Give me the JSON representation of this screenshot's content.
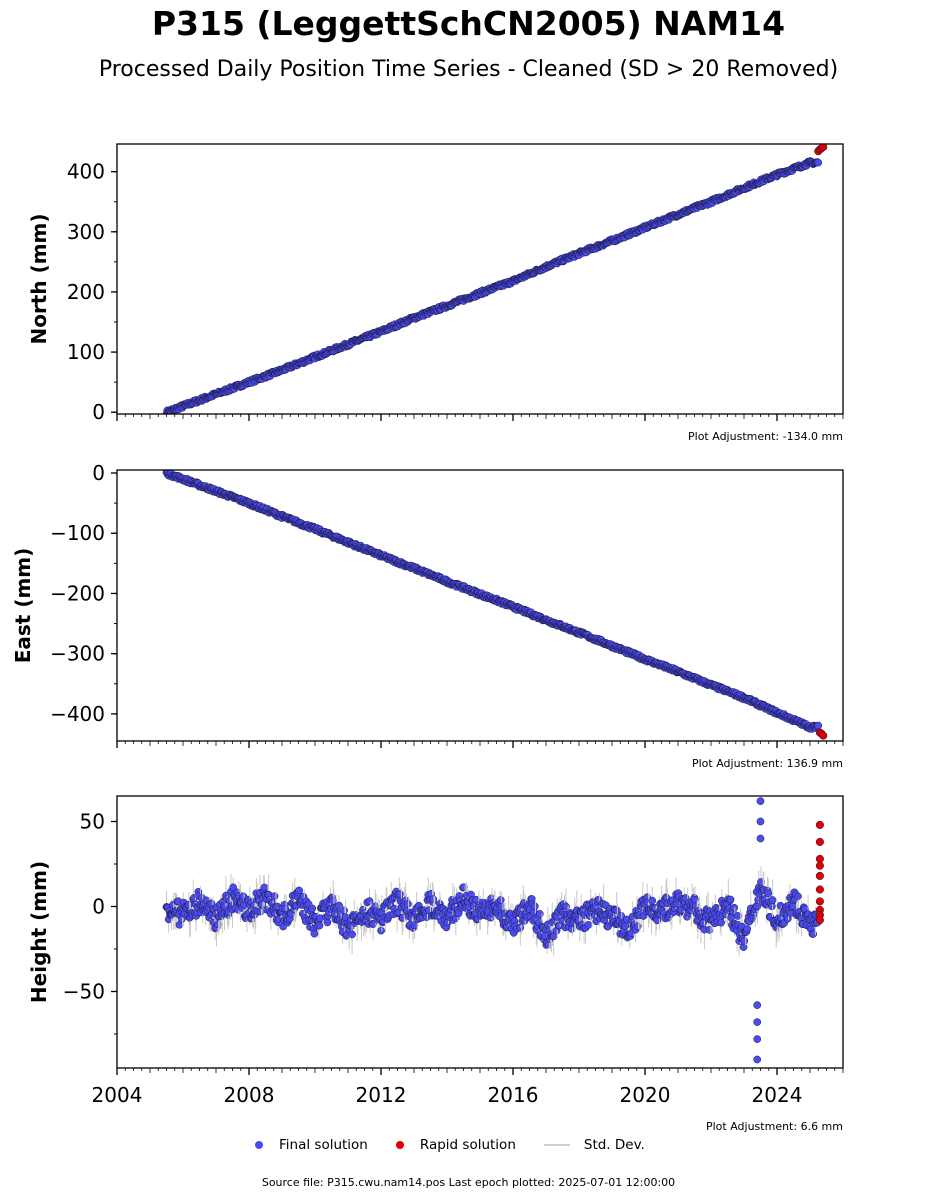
{
  "chart_data": [
    {
      "type": "scatter",
      "title": "P315 (LeggettSchCN2005) NAM14",
      "subtitle": "Processed Daily Position Time Series - Cleaned (SD > 20 Removed)",
      "ylabel": "North (mm)",
      "ylim": [
        -3,
        446
      ],
      "xlim": [
        2004.0,
        2026.0
      ],
      "yticks": [
        0,
        100,
        200,
        300,
        400
      ],
      "adjustment": "Plot Adjustment: -134.0 mm",
      "series": [
        {
          "name": "Final solution",
          "color": "#4b4bee",
          "x": [
            2005.5,
            2006.0,
            2007.0,
            2008.0,
            2009.0,
            2010.0,
            2011.0,
            2012.0,
            2013.0,
            2014.0,
            2015.0,
            2016.0,
            2017.0,
            2018.0,
            2019.0,
            2020.0,
            2021.0,
            2022.0,
            2023.0,
            2024.0,
            2025.0
          ],
          "y": [
            0,
            10,
            30,
            50,
            70,
            92,
            113,
            134,
            157,
            177,
            198,
            218,
            242,
            264,
            285,
            307,
            329,
            350,
            373,
            395,
            415
          ]
        },
        {
          "name": "Rapid solution",
          "color": "#e00000",
          "x": [
            2025.25,
            2025.3,
            2025.35,
            2025.4
          ],
          "y": [
            434,
            437,
            439,
            441
          ]
        }
      ]
    },
    {
      "type": "scatter",
      "ylabel": "East (mm)",
      "ylim": [
        -445,
        5
      ],
      "xlim": [
        2004.0,
        2026.0
      ],
      "yticks": [
        0,
        -100,
        -200,
        -300,
        -400
      ],
      "adjustment": "Plot Adjustment: 136.9 mm",
      "series": [
        {
          "name": "Final solution",
          "color": "#4b4bee",
          "x": [
            2005.5,
            2006.0,
            2007.0,
            2008.0,
            2009.0,
            2010.0,
            2011.0,
            2012.0,
            2013.0,
            2014.0,
            2015.0,
            2016.0,
            2017.0,
            2018.0,
            2019.0,
            2020.0,
            2021.0,
            2022.0,
            2023.0,
            2024.0,
            2025.0
          ],
          "y": [
            0,
            -10,
            -30,
            -50,
            -72,
            -93,
            -115,
            -137,
            -158,
            -180,
            -201,
            -222,
            -244,
            -265,
            -287,
            -309,
            -330,
            -352,
            -373,
            -398,
            -422
          ]
        },
        {
          "name": "Rapid solution",
          "color": "#e00000",
          "x": [
            2025.3,
            2025.35,
            2025.4
          ],
          "y": [
            -431,
            -433,
            -436
          ]
        }
      ]
    },
    {
      "type": "scatter",
      "ylabel": "Height (mm)",
      "ylim": [
        -95,
        65
      ],
      "xlim": [
        2004.0,
        2026.0
      ],
      "yticks": [
        50,
        0,
        -50
      ],
      "xticks": [
        2004,
        2008,
        2012,
        2016,
        2020,
        2024
      ],
      "adjustment": "Plot Adjustment: 6.6 mm",
      "series": [
        {
          "name": "Final solution",
          "color": "#4b4bee",
          "x": [
            2005.5,
            2006.0,
            2006.5,
            2007.0,
            2007.5,
            2008.0,
            2008.5,
            2009.0,
            2009.5,
            2010.0,
            2010.5,
            2011.0,
            2011.5,
            2012.0,
            2012.5,
            2013.0,
            2013.5,
            2014.0,
            2014.5,
            2015.0,
            2015.5,
            2016.0,
            2016.5,
            2017.0,
            2017.5,
            2018.0,
            2018.5,
            2019.0,
            2019.5,
            2020.0,
            2020.5,
            2021.0,
            2021.5,
            2022.0,
            2022.5,
            2023.0,
            2023.5,
            2024.0,
            2024.5,
            2025.0
          ],
          "y": [
            0,
            -5,
            3,
            -8,
            5,
            -3,
            6,
            -6,
            4,
            -10,
            0,
            -12,
            -2,
            -8,
            3,
            -9,
            2,
            -6,
            5,
            -4,
            0,
            -12,
            2,
            -18,
            -5,
            -8,
            -2,
            -6,
            -14,
            0,
            -3,
            4,
            -2,
            -10,
            2,
            -20,
            12,
            -8,
            4,
            -10
          ],
          "outliers_x": [
            2023.4,
            2023.4,
            2023.4,
            2023.4,
            2023.5,
            2023.5,
            2023.5
          ],
          "outliers_y": [
            -90,
            -78,
            -68,
            -58,
            62,
            50,
            40
          ]
        },
        {
          "name": "Rapid solution",
          "color": "#e00000",
          "x": [
            2025.3,
            2025.3,
            2025.3,
            2025.3,
            2025.3,
            2025.3,
            2025.3,
            2025.3,
            2025.3,
            2025.3
          ],
          "y": [
            48,
            38,
            28,
            24,
            18,
            10,
            3,
            -2,
            -5,
            -8
          ]
        }
      ]
    }
  ],
  "titles": {
    "main": "P315 (LeggettSchCN2005) NAM14",
    "sub": "Processed Daily Position Time Series - Cleaned (SD > 20 Removed)"
  },
  "legend": {
    "final": "Final solution",
    "rapid": "Rapid solution",
    "std": "Std. Dev."
  },
  "colors": {
    "final": "#4b4bee",
    "rapid": "#e00000",
    "edge": "#1a1a40",
    "std": "#c8c8c8"
  },
  "footer": {
    "source": "Source file: P315.cwu.nam14.pos  Last epoch plotted: 2025-07-01 12:00:00"
  }
}
